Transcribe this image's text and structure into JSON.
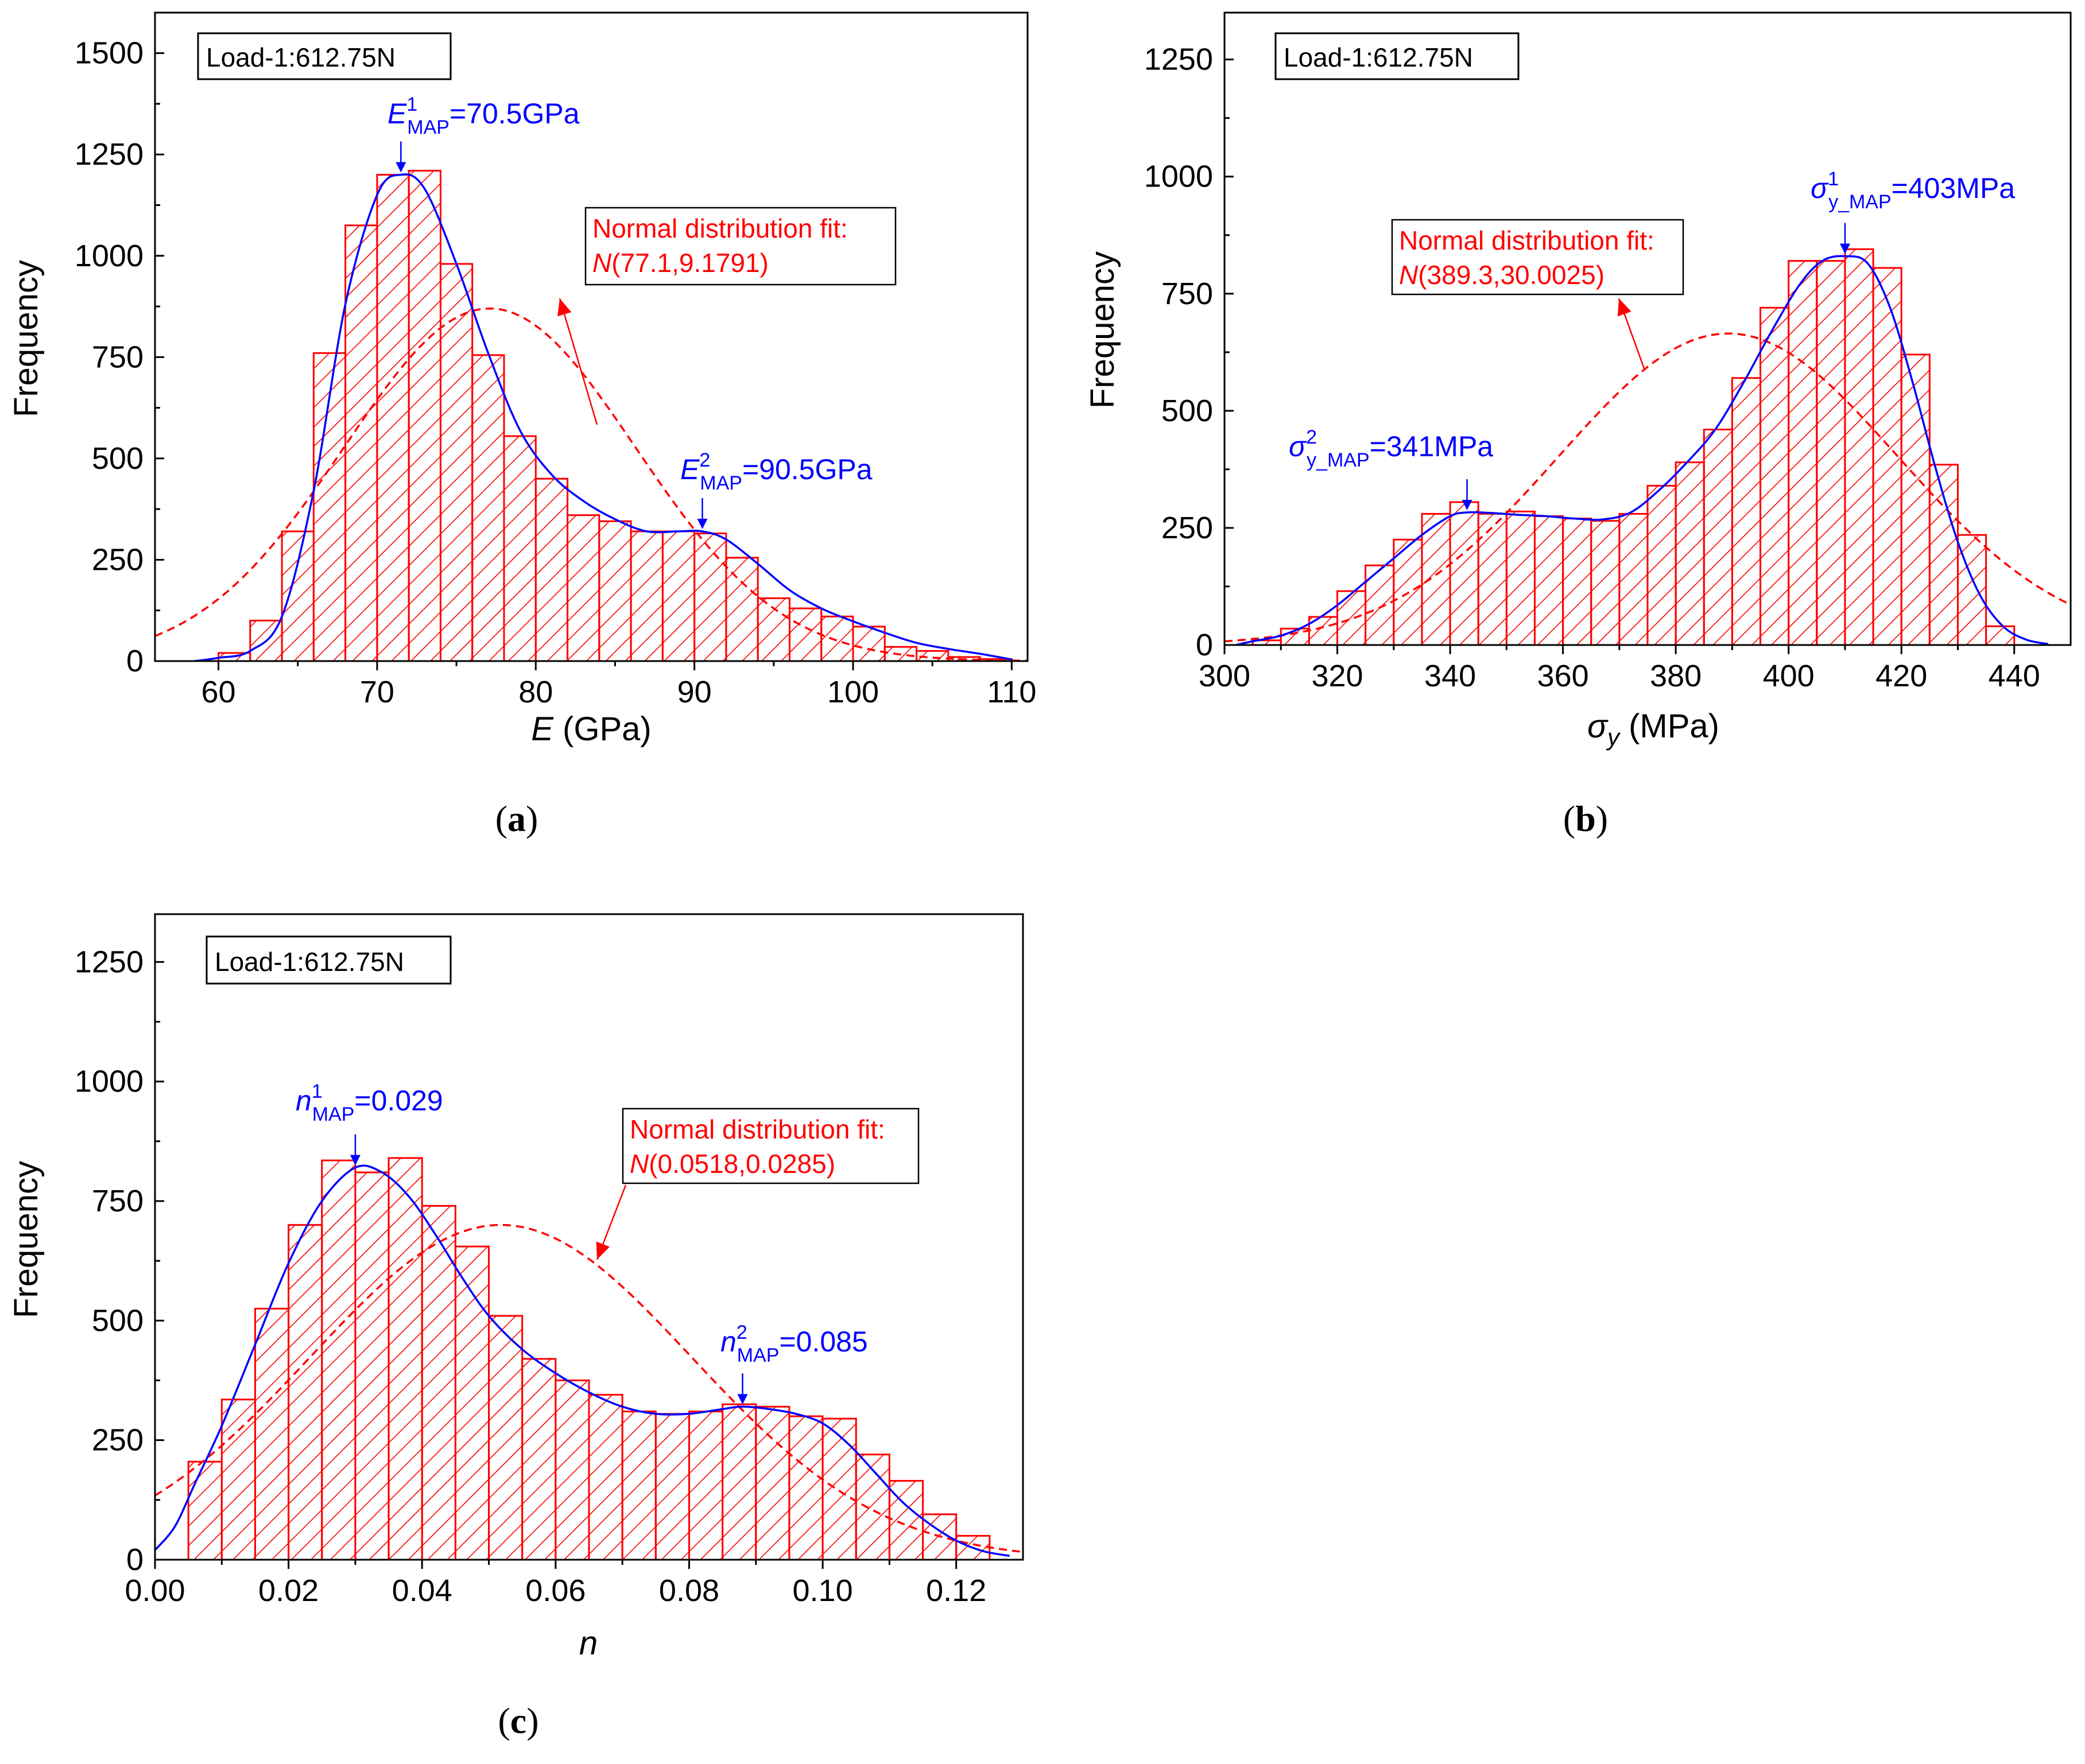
{
  "chart_data": [
    {
      "type": "bar",
      "panel_label": "(a)",
      "letter": "a",
      "load_label": "Load-1:612.75N",
      "xlabel_main": "E",
      "xlabel_unit": " (GPa)",
      "ylabel": "Frequency",
      "xlim": [
        56,
        111
      ],
      "ylim": [
        0,
        1600
      ],
      "xticks": [
        60,
        70,
        80,
        90,
        100,
        110
      ],
      "xtick_labels": [
        "60",
        "70",
        "80",
        "90",
        "100",
        "110"
      ],
      "yticks": [
        0,
        250,
        500,
        750,
        1000,
        1250,
        1500
      ],
      "ytick_labels": [
        "0",
        "250",
        "500",
        "750",
        "1000",
        "1250",
        "1500"
      ],
      "bin_start": 60,
      "bin_width": 2,
      "values": [
        20,
        100,
        320,
        760,
        1075,
        1200,
        1210,
        980,
        755,
        555,
        450,
        360,
        345,
        320,
        320,
        315,
        255,
        155,
        130,
        110,
        85,
        35,
        25,
        10,
        5
      ],
      "kde": [
        [
          58.5,
          0
        ],
        [
          60,
          8
        ],
        [
          62,
          25
        ],
        [
          64,
          110
        ],
        [
          66,
          420
        ],
        [
          68,
          880
        ],
        [
          70,
          1150
        ],
        [
          71.5,
          1200
        ],
        [
          73,
          1165
        ],
        [
          75,
          980
        ],
        [
          77,
          760
        ],
        [
          79,
          570
        ],
        [
          81,
          460
        ],
        [
          83,
          395
        ],
        [
          85,
          350
        ],
        [
          87,
          320
        ],
        [
          89,
          320
        ],
        [
          90.5,
          320
        ],
        [
          92,
          300
        ],
        [
          94,
          240
        ],
        [
          96,
          175
        ],
        [
          98,
          130
        ],
        [
          100,
          98
        ],
        [
          102,
          70
        ],
        [
          104,
          45
        ],
        [
          106,
          30
        ],
        [
          108,
          18
        ],
        [
          110,
          4
        ]
      ],
      "normal_fit": {
        "mean": 77.1,
        "sd": 9.1791,
        "scale": 870
      },
      "fit_label_line1": "Normal distribution fit:",
      "fit_label_main": "N",
      "fit_label_params": "(77.1,9.1791)",
      "map1": {
        "sym": "E",
        "sup": "1",
        "sub": "MAP",
        "val": "=70.5GPa",
        "x": 71.5,
        "y": 1200
      },
      "map2": {
        "sym": "E",
        "sup": "2",
        "sub": "MAP",
        "val": "=90.5GPa",
        "x": 90.5,
        "y": 320
      }
    },
    {
      "type": "bar",
      "panel_label": "(b)",
      "letter": "b",
      "load_label": "Load-1:612.75N",
      "xlabel_main": "σy",
      "xlabel_unit": " (MPa)",
      "ylabel": "Frequency",
      "xlim": [
        300,
        450
      ],
      "ylim": [
        0,
        1350
      ],
      "xticks": [
        300,
        320,
        340,
        360,
        380,
        400,
        420,
        440
      ],
      "xtick_labels": [
        "300",
        "320",
        "340",
        "360",
        "380",
        "400",
        "420",
        "440"
      ],
      "yticks": [
        0,
        250,
        500,
        750,
        1000,
        1250
      ],
      "ytick_labels": [
        "0",
        "250",
        "500",
        "750",
        "1000",
        "1250"
      ],
      "bin_start": 305,
      "bin_width": 5,
      "values": [
        10,
        35,
        60,
        115,
        170,
        225,
        280,
        305,
        280,
        285,
        275,
        270,
        265,
        280,
        340,
        390,
        460,
        570,
        720,
        820,
        820,
        845,
        805,
        620,
        385,
        235,
        40
      ],
      "kde": [
        [
          302,
          0
        ],
        [
          305,
          8
        ],
        [
          310,
          20
        ],
        [
          315,
          45
        ],
        [
          320,
          85
        ],
        [
          325,
          135
        ],
        [
          330,
          185
        ],
        [
          335,
          235
        ],
        [
          340,
          275
        ],
        [
          343,
          283
        ],
        [
          347,
          282
        ],
        [
          352,
          278
        ],
        [
          357,
          275
        ],
        [
          362,
          270
        ],
        [
          367,
          268
        ],
        [
          372,
          283
        ],
        [
          377,
          330
        ],
        [
          382,
          390
        ],
        [
          387,
          460
        ],
        [
          392,
          560
        ],
        [
          397,
          670
        ],
        [
          402,
          770
        ],
        [
          406,
          820
        ],
        [
          410,
          830
        ],
        [
          414,
          815
        ],
        [
          418,
          720
        ],
        [
          422,
          560
        ],
        [
          426,
          380
        ],
        [
          430,
          220
        ],
        [
          434,
          105
        ],
        [
          438,
          40
        ],
        [
          442,
          12
        ],
        [
          446,
          2
        ]
      ],
      "normal_fit": {
        "mean": 389.3,
        "sd": 30.0025,
        "scale": 665
      },
      "fit_label_line1": "Normal distribution fit:",
      "fit_label_main": "N",
      "fit_label_params": "(389.3,30.0025)",
      "map1": {
        "sym": "σ",
        "sup": "1",
        "sub": "y_MAP",
        "val": "=403MPa",
        "x": 410,
        "y": 830
      },
      "map2": {
        "sym": "σ",
        "sup": "2",
        "sub": "y_MAP",
        "val": "=341MPa",
        "x": 343,
        "y": 283
      }
    },
    {
      "type": "bar",
      "panel_label": "(c)",
      "letter": "c",
      "load_label": "Load-1:612.75N",
      "xlabel_main": "n",
      "xlabel_unit": "",
      "ylabel": "Frequency",
      "xlim": [
        0,
        0.13
      ],
      "ylim": [
        0,
        1350
      ],
      "xticks": [
        0,
        0.02,
        0.04,
        0.06,
        0.08,
        0.1,
        0.12
      ],
      "xtick_labels": [
        "0.00",
        "0.02",
        "0.04",
        "0.06",
        "0.08",
        "0.10",
        "0.12"
      ],
      "yticks": [
        0,
        250,
        500,
        750,
        1000,
        1250
      ],
      "ytick_labels": [
        "0",
        "250",
        "500",
        "750",
        "1000",
        "1250"
      ],
      "bin_start": 0.005,
      "bin_width": 0.005,
      "values": [
        205,
        335,
        525,
        700,
        835,
        810,
        840,
        740,
        655,
        510,
        420,
        375,
        345,
        310,
        305,
        310,
        325,
        320,
        300,
        295,
        220,
        165,
        95,
        50
      ],
      "kde": [
        [
          0,
          20
        ],
        [
          0.003,
          70
        ],
        [
          0.006,
          160
        ],
        [
          0.01,
          280
        ],
        [
          0.015,
          450
        ],
        [
          0.02,
          620
        ],
        [
          0.025,
          750
        ],
        [
          0.03,
          820
        ],
        [
          0.034,
          810
        ],
        [
          0.038,
          760
        ],
        [
          0.042,
          680
        ],
        [
          0.046,
          590
        ],
        [
          0.05,
          510
        ],
        [
          0.055,
          440
        ],
        [
          0.06,
          390
        ],
        [
          0.065,
          350
        ],
        [
          0.07,
          320
        ],
        [
          0.075,
          305
        ],
        [
          0.08,
          305
        ],
        [
          0.085,
          315
        ],
        [
          0.088,
          320
        ],
        [
          0.092,
          315
        ],
        [
          0.096,
          305
        ],
        [
          0.1,
          285
        ],
        [
          0.104,
          240
        ],
        [
          0.108,
          180
        ],
        [
          0.112,
          120
        ],
        [
          0.116,
          75
        ],
        [
          0.12,
          40
        ],
        [
          0.124,
          18
        ],
        [
          0.128,
          8
        ]
      ],
      "normal_fit": {
        "mean": 0.0518,
        "sd": 0.0285,
        "scale": 700
      },
      "fit_label_line1": "Normal distribution fit:",
      "fit_label_main": "N",
      "fit_label_params": "(0.0518,0.0285)",
      "map1": {
        "sym": "n",
        "sup": "1",
        "sub": "MAP",
        "val": "=0.029",
        "x": 0.03,
        "y": 820
      },
      "map2": {
        "sym": "n",
        "sup": "2",
        "sub": "MAP",
        "val": "=0.085",
        "x": 0.088,
        "y": 320
      }
    }
  ],
  "colors": {
    "bars": "#ff0000",
    "kde": "#0000ff",
    "fit": "#ff0000",
    "axis": "#000000",
    "annotation": "#0000ff",
    "fit_text": "#ff0000"
  }
}
